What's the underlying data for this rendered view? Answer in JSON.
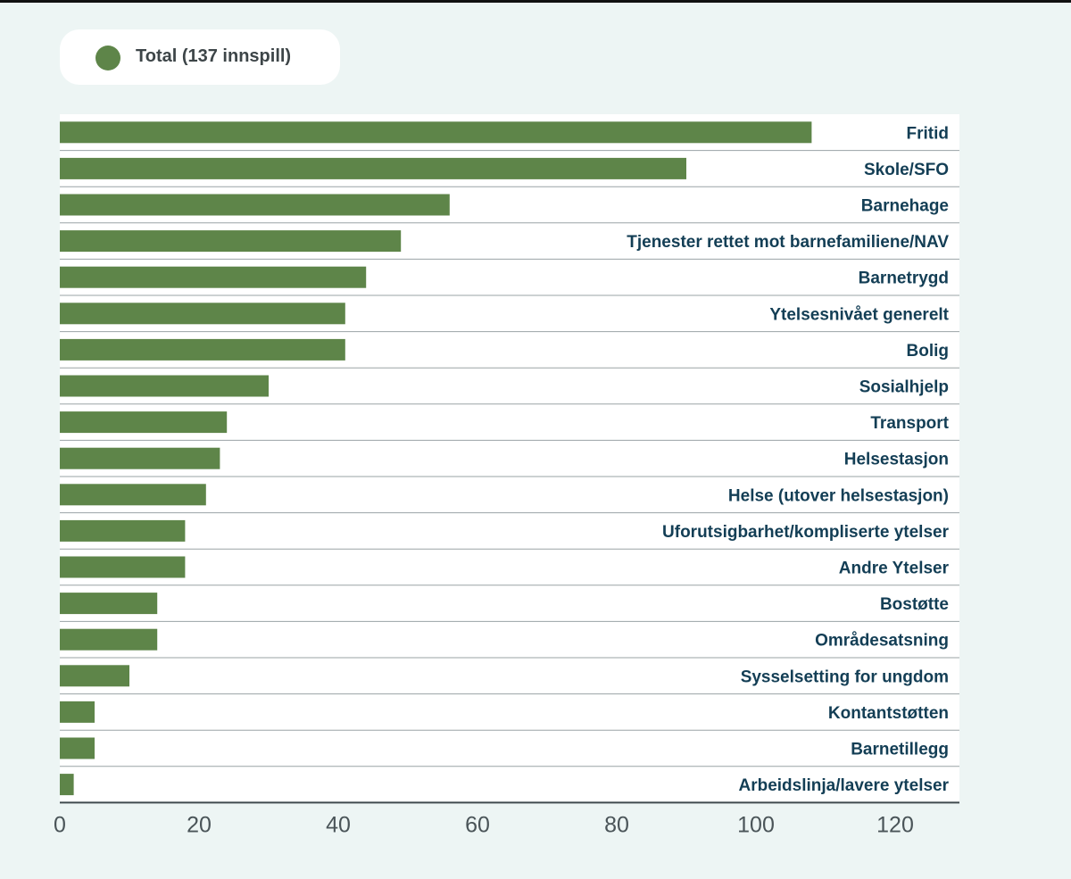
{
  "legend": {
    "label": "Total (137 innspill)",
    "color": "#5e8549"
  },
  "chart_data": {
    "type": "bar",
    "orientation": "horizontal",
    "title": "",
    "xlabel": "",
    "ylabel": "",
    "xlim": [
      0,
      130
    ],
    "xticks": [
      0,
      20,
      40,
      60,
      80,
      100,
      120
    ],
    "grid": false,
    "legend_position": "top-left",
    "bar_color": "#5e8549",
    "label_color": "#133e55",
    "categories": [
      "Fritid",
      "Skole/SFO",
      "Barnehage",
      "Tjenester rettet mot barnefamiliene/NAV",
      "Barnetrygd",
      "Ytelsesnivået generelt",
      "Bolig",
      "Sosialhjelp",
      "Transport",
      "Helsestasjon",
      "Helse (utover helsestasjon)",
      "Uforutsigbarhet/kompliserte ytelser",
      "Andre Ytelser",
      "Bostøtte",
      "Områdesatsning",
      "Sysselsetting for ungdom",
      "Kontantstøtten",
      "Barnetillegg",
      "Arbeidslinja/lavere ytelser"
    ],
    "series": [
      {
        "name": "Total (137 innspill)",
        "values": [
          108,
          90,
          56,
          49,
          44,
          41,
          41,
          30,
          24,
          23,
          21,
          18,
          18,
          14,
          14,
          10,
          5,
          5,
          2
        ]
      }
    ]
  }
}
